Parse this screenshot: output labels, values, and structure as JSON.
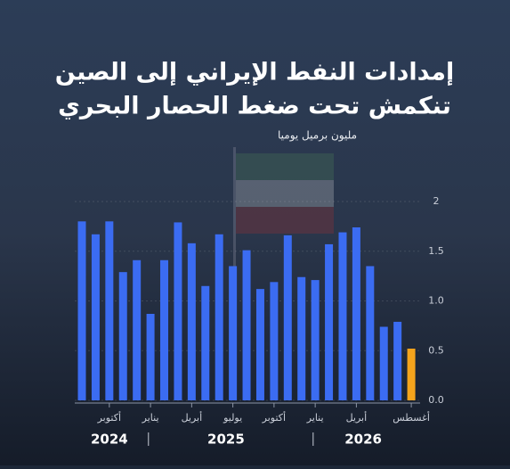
{
  "chart_data": {
    "type": "bar",
    "title": [
      "إمدادات النفط الإيراني إلى الصين",
      "تنكمش تحت ضغط الحصار البحري"
    ],
    "subtitle": "مليون برميل يوميا",
    "categories": [
      null,
      null,
      "أكتوبر",
      null,
      null,
      "يناير",
      null,
      null,
      "أبريل",
      null,
      null,
      "يوليو",
      null,
      null,
      "أكتوبر",
      null,
      null,
      "يناير",
      null,
      null,
      "أبريل",
      null,
      null,
      null,
      "أغسطس"
    ],
    "values": [
      1.8,
      1.67,
      1.8,
      1.29,
      1.41,
      0.87,
      1.41,
      1.79,
      1.58,
      1.15,
      1.67,
      1.35,
      1.51,
      1.12,
      1.19,
      1.66,
      1.24,
      1.21,
      1.57,
      1.69,
      1.74,
      1.35,
      0.74,
      0.79,
      0.52
    ],
    "colors": [
      "#3b6cf2",
      "#3b6cf2",
      "#3b6cf2",
      "#3b6cf2",
      "#3b6cf2",
      "#3b6cf2",
      "#3b6cf2",
      "#3b6cf2",
      "#3b6cf2",
      "#3b6cf2",
      "#3b6cf2",
      "#3b6cf2",
      "#3b6cf2",
      "#3b6cf2",
      "#3b6cf2",
      "#3b6cf2",
      "#3b6cf2",
      "#3b6cf2",
      "#3b6cf2",
      "#3b6cf2",
      "#3b6cf2",
      "#3b6cf2",
      "#3b6cf2",
      "#3b6cf2",
      "#f5a41c"
    ],
    "years": [
      "2024",
      "2025",
      "2026"
    ],
    "ylim": [
      0,
      2
    ],
    "yticks": [
      {
        "value": 0,
        "label": "0.0"
      },
      0.5,
      {
        "value": 1,
        "label": "1.0"
      },
      1.5,
      2
    ],
    "grid": true
  }
}
